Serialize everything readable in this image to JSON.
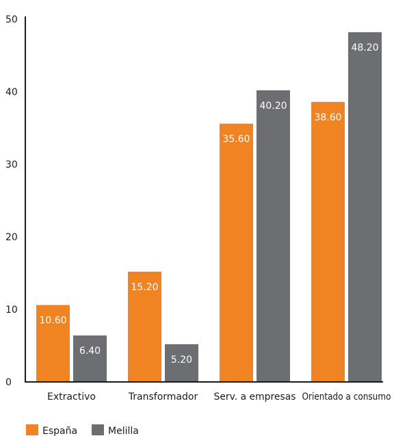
{
  "chart_data": {
    "type": "bar",
    "title": "",
    "xlabel": "",
    "ylabel": "",
    "categories": [
      "Extractivo",
      "Transformador",
      "Serv. a empresas",
      "Orientado a consumo"
    ],
    "series": [
      {
        "name": "España",
        "values": [
          10.6,
          15.2,
          35.6,
          38.6
        ],
        "labels": [
          "10.60",
          "15.20",
          "35.60",
          "38.60"
        ],
        "color": "#f18422"
      },
      {
        "name": "Melilla",
        "values": [
          6.4,
          5.2,
          40.2,
          48.2
        ],
        "labels": [
          "6.40",
          "5.20",
          "40.20",
          "48.20"
        ],
        "color": "#6d6e71"
      }
    ],
    "ylim": [
      0,
      50
    ],
    "yticks": [
      "0",
      "10",
      "20",
      "30",
      "40",
      "50"
    ],
    "grid": false,
    "legend_position": "bottom-left"
  }
}
